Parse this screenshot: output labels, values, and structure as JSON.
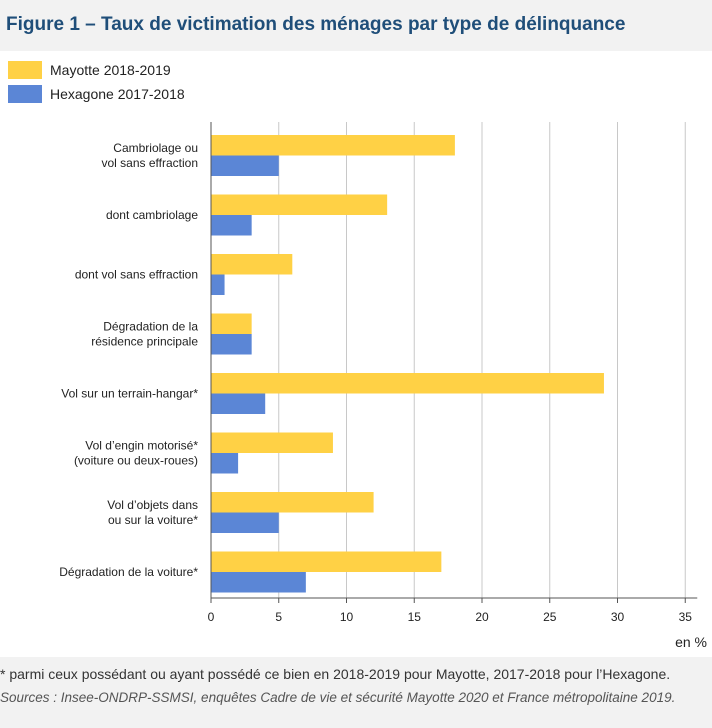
{
  "title": "Figure 1 – Taux de victimation des ménages par type de délinquance",
  "footnote": "* parmi ceux possédant ou ayant possédé ce bien en 2018-2019 pour Mayotte, 2017-2018 pour l’Hexagone.",
  "source": "Sources : Insee-ONDRP-SSMSI, enquêtes Cadre de vie et sécurité Mayotte 2020 et France métropolitaine 2019.",
  "colors": {
    "mayotte": "#ffd145",
    "hexagone": "#5b86d6"
  },
  "chart_data": {
    "type": "bar",
    "orientation": "horizontal",
    "categories": [
      [
        "Cambriolage ou",
        "vol sans effraction"
      ],
      [
        "dont cambriolage"
      ],
      [
        "dont vol sans effraction"
      ],
      [
        "Dégradation de la",
        "résidence principale"
      ],
      [
        "Vol sur un terrain-hangar*"
      ],
      [
        "Vol d’engin motorisé*",
        "(voiture ou deux-roues)"
      ],
      [
        "Vol d’objets dans",
        "ou sur la voiture*"
      ],
      [
        "Dégradation de la voiture*"
      ]
    ],
    "series": [
      {
        "name": "Mayotte 2018-2019",
        "color": "#ffd145",
        "values": [
          18,
          13,
          6,
          3,
          29,
          9,
          12,
          17
        ]
      },
      {
        "name": "Hexagone 2017-2018",
        "color": "#5b86d6",
        "values": [
          5,
          3,
          1,
          3,
          4,
          2,
          5,
          7
        ]
      }
    ],
    "xlabel": "en %",
    "xlim": [
      0,
      35
    ],
    "xticks": [
      0,
      5,
      10,
      15,
      20,
      25,
      30,
      35
    ],
    "grid": true,
    "legend_position": "top-left"
  }
}
